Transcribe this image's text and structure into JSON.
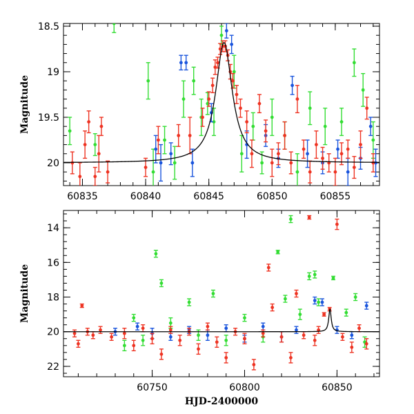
{
  "chart_data": [
    {
      "type": "scatter",
      "title": "",
      "xlabel": "",
      "ylabel": "Magnitude",
      "xlim": [
        60833.5,
        60858.5
      ],
      "ylim": [
        20.25,
        18.47
      ],
      "y_inverted": true,
      "xticks": [
        60835,
        60840,
        60845,
        60850,
        60855
      ],
      "yticks": [
        18.5,
        19,
        19.5,
        20
      ],
      "ytick_labels": [
        "18.5",
        "19",
        "19.5",
        "20"
      ],
      "legend": "none",
      "colors": {
        "green": "#33dd33",
        "blue": "#1a55dd",
        "red": "#ee3322",
        "model": "#000000"
      },
      "model_curve": {
        "type": "lorentzian",
        "baseline": 20.0,
        "peak": 18.68,
        "t0": 60846.2,
        "width": 0.8
      },
      "series": [
        {
          "color": "green",
          "points": [
            [
              60834.0,
              19.65,
              0.15
            ],
            [
              60836.0,
              19.8,
              0.12
            ],
            [
              60837.5,
              18.47,
              0.1
            ],
            [
              60840.2,
              19.1,
              0.2
            ],
            [
              60840.6,
              20.1,
              0.25
            ],
            [
              60841.5,
              19.75,
              0.15
            ],
            [
              60842.3,
              20.0,
              0.18
            ],
            [
              60843.0,
              19.3,
              0.2
            ],
            [
              60843.8,
              19.1,
              0.15
            ],
            [
              60844.4,
              19.5,
              0.2
            ],
            [
              60844.9,
              19.35,
              0.12
            ],
            [
              60845.4,
              19.55,
              0.15
            ],
            [
              60846.0,
              18.6,
              0.1
            ],
            [
              60847.0,
              19.0,
              0.18
            ],
            [
              60847.6,
              19.9,
              0.2
            ],
            [
              60848.5,
              19.6,
              0.15
            ],
            [
              60849.2,
              20.0,
              0.12
            ],
            [
              60850.0,
              19.5,
              0.2
            ],
            [
              60851.0,
              19.7,
              0.15
            ],
            [
              60852.0,
              20.1,
              0.2
            ],
            [
              60853.0,
              19.4,
              0.18
            ],
            [
              60854.2,
              19.6,
              0.2
            ],
            [
              60855.5,
              19.55,
              0.15
            ],
            [
              60856.5,
              18.9,
              0.15
            ],
            [
              60857.2,
              19.2,
              0.18
            ],
            [
              60858.0,
              19.75,
              0.2
            ]
          ]
        },
        {
          "color": "blue",
          "points": [
            [
              60840.8,
              19.85,
              0.15
            ],
            [
              60841.2,
              20.0,
              0.2
            ],
            [
              60842.0,
              19.9,
              0.12
            ],
            [
              60842.8,
              18.9,
              0.08
            ],
            [
              60843.2,
              18.9,
              0.08
            ],
            [
              60843.7,
              20.0,
              0.15
            ],
            [
              60845.2,
              19.45,
              0.1
            ],
            [
              60846.4,
              18.55,
              0.08
            ],
            [
              60846.8,
              18.7,
              0.1
            ],
            [
              60848.0,
              19.8,
              0.15
            ],
            [
              60849.5,
              19.7,
              0.12
            ],
            [
              60850.5,
              19.95,
              0.1
            ],
            [
              60851.6,
              19.15,
              0.1
            ],
            [
              60852.8,
              19.9,
              0.15
            ],
            [
              60854.0,
              20.0,
              0.12
            ],
            [
              60855.2,
              19.85,
              0.1
            ],
            [
              60856.0,
              20.1,
              0.15
            ],
            [
              60857.0,
              19.95,
              0.12
            ],
            [
              60857.8,
              19.6,
              0.1
            ],
            [
              60858.2,
              20.0,
              0.15
            ]
          ]
        },
        {
          "color": "red",
          "points": [
            [
              60834.2,
              20.0,
              0.12
            ],
            [
              60834.8,
              20.15,
              0.15
            ],
            [
              60835.2,
              19.8,
              0.15
            ],
            [
              60835.5,
              19.55,
              0.12
            ],
            [
              60836.0,
              20.15,
              0.1
            ],
            [
              60836.3,
              19.9,
              0.2
            ],
            [
              60836.5,
              19.6,
              0.1
            ],
            [
              60837.0,
              20.1,
              0.12
            ],
            [
              60840.0,
              20.05,
              0.1
            ],
            [
              60841.0,
              19.75,
              0.15
            ],
            [
              60842.6,
              19.7,
              0.12
            ],
            [
              60843.5,
              19.7,
              0.2
            ],
            [
              60844.5,
              19.5,
              0.1
            ],
            [
              60845.0,
              19.3,
              0.08
            ],
            [
              60845.3,
              19.15,
              0.08
            ],
            [
              60845.5,
              18.95,
              0.08
            ],
            [
              60845.7,
              18.9,
              0.06
            ],
            [
              60845.9,
              18.75,
              0.06
            ],
            [
              60846.1,
              18.72,
              0.06
            ],
            [
              60846.3,
              18.72,
              0.06
            ],
            [
              60846.5,
              18.82,
              0.06
            ],
            [
              60846.7,
              19.0,
              0.08
            ],
            [
              60846.9,
              19.1,
              0.08
            ],
            [
              60847.2,
              19.25,
              0.1
            ],
            [
              60847.5,
              19.4,
              0.1
            ],
            [
              60848.0,
              19.55,
              0.12
            ],
            [
              60848.4,
              19.9,
              0.15
            ],
            [
              60849.0,
              19.35,
              0.1
            ],
            [
              60849.5,
              19.65,
              0.12
            ],
            [
              60850.0,
              20.0,
              0.15
            ],
            [
              60850.5,
              19.9,
              0.12
            ],
            [
              60851.0,
              19.7,
              0.15
            ],
            [
              60851.5,
              20.0,
              0.12
            ],
            [
              60852.0,
              19.3,
              0.15
            ],
            [
              60852.5,
              19.85,
              0.1
            ],
            [
              60853.0,
              20.1,
              0.12
            ],
            [
              60853.5,
              19.8,
              0.15
            ],
            [
              60854.0,
              19.95,
              0.12
            ],
            [
              60854.5,
              20.0,
              0.1
            ],
            [
              60855.0,
              20.1,
              0.15
            ],
            [
              60855.5,
              19.9,
              0.12
            ],
            [
              60856.0,
              19.85,
              0.1
            ],
            [
              60856.5,
              20.05,
              0.12
            ],
            [
              60857.0,
              19.8,
              0.15
            ],
            [
              60857.5,
              19.4,
              0.12
            ],
            [
              60858.0,
              20.0,
              0.1
            ]
          ]
        }
      ]
    },
    {
      "type": "scatter",
      "title": "",
      "xlabel": "HJD-2400000",
      "ylabel": "Magnitude",
      "xlim": [
        60702,
        60873
      ],
      "ylim": [
        22.6,
        13.0
      ],
      "y_inverted": true,
      "xticks": [
        60750,
        60800,
        60850
      ],
      "yticks": [
        14,
        16,
        18,
        20,
        22
      ],
      "ytick_labels": [
        "14",
        "16",
        "18",
        "20",
        "22"
      ],
      "legend": "none",
      "colors": {
        "green": "#33dd33",
        "blue": "#1a55dd",
        "red": "#ee3322",
        "model": "#000000"
      },
      "model_curve": {
        "type": "lorentzian",
        "baseline": 20.0,
        "peak": 18.68,
        "t0": 60846.2,
        "width": 0.8
      },
      "series": [
        {
          "color": "green",
          "points": [
            [
              60735,
              20.8,
              0.3
            ],
            [
              60740,
              19.2,
              0.2
            ],
            [
              60745,
              20.5,
              0.3
            ],
            [
              60752,
              15.5,
              0.2
            ],
            [
              60755,
              17.2,
              0.2
            ],
            [
              60760,
              19.5,
              0.3
            ],
            [
              60770,
              18.3,
              0.2
            ],
            [
              60775,
              20.2,
              0.3
            ],
            [
              60783,
              17.8,
              0.2
            ],
            [
              60790,
              20.5,
              0.3
            ],
            [
              60800,
              19.2,
              0.2
            ],
            [
              60810,
              20.3,
              0.3
            ],
            [
              60818,
              15.4,
              0.1
            ],
            [
              60822,
              18.1,
              0.2
            ],
            [
              60825,
              13.5,
              0.2
            ],
            [
              60830,
              19.0,
              0.3
            ],
            [
              60835,
              16.8,
              0.2
            ],
            [
              60838,
              16.7,
              0.2
            ],
            [
              60840,
              18.3,
              0.2
            ],
            [
              60848,
              16.9,
              0.1
            ],
            [
              60855,
              18.9,
              0.2
            ],
            [
              60860,
              18.0,
              0.2
            ],
            [
              60865,
              20.6,
              0.3
            ]
          ]
        },
        {
          "color": "blue",
          "points": [
            [
              60730,
              20.0,
              0.2
            ],
            [
              60742,
              19.7,
              0.2
            ],
            [
              60750,
              20.1,
              0.3
            ],
            [
              60760,
              20.3,
              0.2
            ],
            [
              60770,
              19.9,
              0.2
            ],
            [
              60780,
              20.2,
              0.3
            ],
            [
              60790,
              19.8,
              0.2
            ],
            [
              60800,
              20.4,
              0.2
            ],
            [
              60810,
              19.7,
              0.2
            ],
            [
              60820,
              20.3,
              0.3
            ],
            [
              60828,
              19.9,
              0.2
            ],
            [
              60838,
              18.2,
              0.2
            ],
            [
              60842,
              18.3,
              0.2
            ],
            [
              60850,
              19.9,
              0.2
            ],
            [
              60858,
              20.2,
              0.2
            ],
            [
              60866,
              18.5,
              0.2
            ]
          ]
        },
        {
          "color": "red",
          "points": [
            [
              60708,
              20.1,
              0.2
            ],
            [
              60710,
              20.7,
              0.2
            ],
            [
              60712,
              18.5,
              0.1
            ],
            [
              60715,
              20.0,
              0.2
            ],
            [
              60718,
              20.2,
              0.2
            ],
            [
              60722,
              19.9,
              0.2
            ],
            [
              60728,
              20.3,
              0.2
            ],
            [
              60735,
              20.1,
              0.3
            ],
            [
              60740,
              20.8,
              0.3
            ],
            [
              60745,
              19.8,
              0.2
            ],
            [
              60750,
              20.4,
              0.3
            ],
            [
              60755,
              21.3,
              0.3
            ],
            [
              60760,
              19.9,
              0.2
            ],
            [
              60765,
              20.5,
              0.3
            ],
            [
              60770,
              20.0,
              0.2
            ],
            [
              60775,
              21.0,
              0.3
            ],
            [
              60780,
              19.7,
              0.2
            ],
            [
              60785,
              20.6,
              0.3
            ],
            [
              60790,
              21.5,
              0.3
            ],
            [
              60795,
              20.0,
              0.2
            ],
            [
              60800,
              20.4,
              0.3
            ],
            [
              60805,
              21.9,
              0.3
            ],
            [
              60810,
              20.1,
              0.2
            ],
            [
              60813,
              16.3,
              0.2
            ],
            [
              60815,
              18.6,
              0.2
            ],
            [
              60820,
              20.3,
              0.3
            ],
            [
              60825,
              21.5,
              0.3
            ],
            [
              60828,
              17.8,
              0.2
            ],
            [
              60832,
              20.2,
              0.2
            ],
            [
              60835,
              13.4,
              0.1
            ],
            [
              60838,
              20.5,
              0.3
            ],
            [
              60840,
              19.9,
              0.2
            ],
            [
              60843,
              19.0,
              0.1
            ],
            [
              60846,
              18.7,
              0.1
            ],
            [
              60850,
              13.8,
              0.3
            ],
            [
              60853,
              20.3,
              0.2
            ],
            [
              60858,
              20.9,
              0.3
            ],
            [
              60862,
              19.8,
              0.2
            ],
            [
              60866,
              20.7,
              0.3
            ]
          ]
        }
      ]
    }
  ]
}
